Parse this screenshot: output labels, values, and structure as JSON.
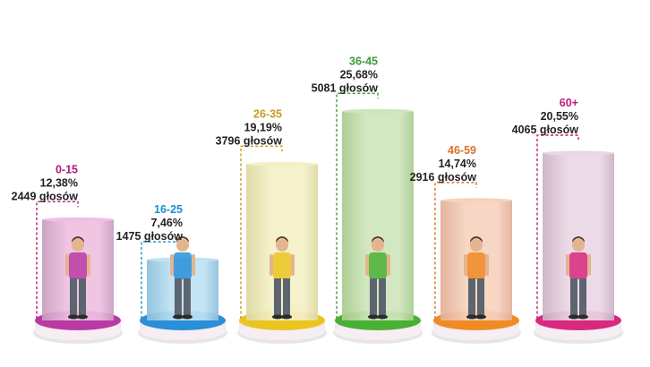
{
  "chart_data": {
    "type": "bar",
    "categories": [
      "0-15",
      "16-25",
      "26-35",
      "36-45",
      "46-59",
      "60+"
    ],
    "values": [
      12.38,
      7.46,
      19.19,
      25.68,
      14.74,
      20.55
    ],
    "votes_text": [
      "2449 głosów",
      "1475 głosów",
      "3796 głosów",
      "5081 głosów",
      "2916 głosów",
      "4065 głosów"
    ],
    "percent_text": [
      "12,38%",
      "7,46%",
      "19,19%",
      "25,68%",
      "14,74%",
      "20,55%"
    ],
    "colors": {
      "label": [
        "#b5177e",
        "#1f8fcf",
        "#c79a1c",
        "#3f9a37",
        "#d9722a",
        "#c8187e"
      ],
      "cylinder": [
        "#efc0e0",
        "#bfe2f3",
        "#f4f0c6",
        "#cfe5bd",
        "#f6d2bf",
        "#ead7e4"
      ],
      "cylinder_dark": [
        "#c99bc0",
        "#8cbfdc",
        "#ddd8a2",
        "#a7cb8d",
        "#e2ae95",
        "#cbb1c4"
      ],
      "disc": [
        "#b93aa2",
        "#2a8fd6",
        "#ecc41f",
        "#49b035",
        "#ef8a24",
        "#d8287f"
      ]
    },
    "grid": false,
    "legend": "none"
  }
}
